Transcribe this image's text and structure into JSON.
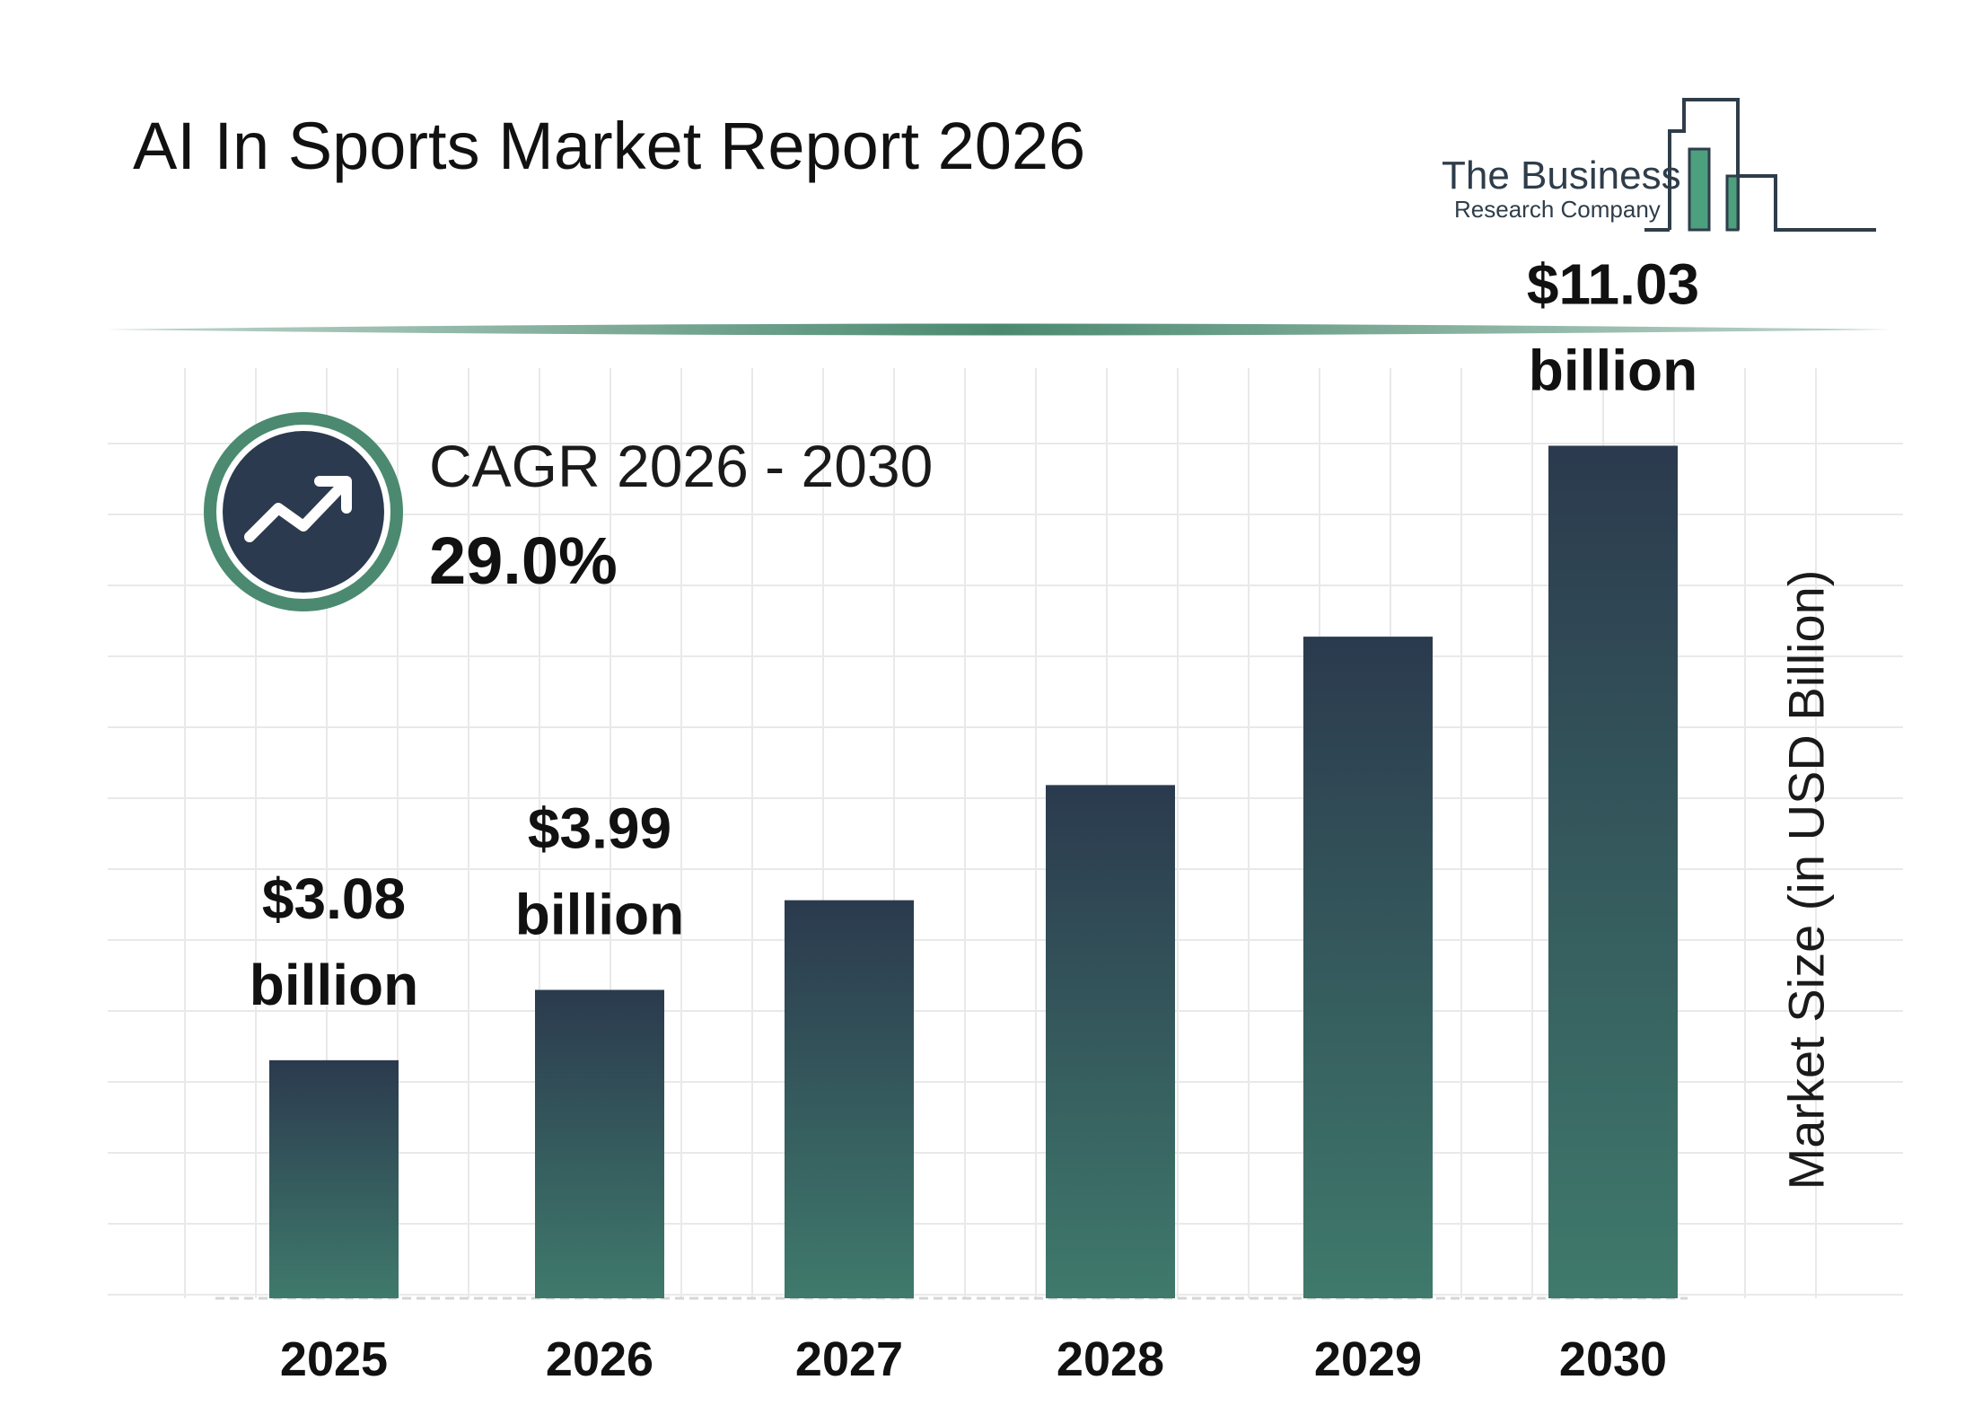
{
  "header": {
    "title": "AI In Sports Market Report 2026",
    "logo_line1": "The Business",
    "logo_line2": "Research Company"
  },
  "cagr": {
    "label": "CAGR 2026 - 2030",
    "value": "29.0%",
    "icon": "trending-up-icon"
  },
  "colors": {
    "bar_top": "#2b3a4e",
    "bar_bottom": "#3f7a6c",
    "accent_green": "#4b8a70",
    "dark_navy": "#2b3a4e",
    "grid": "#e9e9e9"
  },
  "chart_data": {
    "type": "bar",
    "categories": [
      "2025",
      "2026",
      "2027",
      "2028",
      "2029",
      "2030"
    ],
    "values": [
      3.08,
      3.99,
      5.15,
      6.64,
      8.56,
      11.03
    ],
    "ylabel": "Market Size (in USD Billion)",
    "ylim": [
      0,
      11.5
    ],
    "data_labels": [
      {
        "index": 0,
        "value_text": "$3.08",
        "unit_text": "billion"
      },
      {
        "index": 1,
        "value_text": "$3.99",
        "unit_text": "billion"
      },
      {
        "index": 5,
        "value_text": "$11.03",
        "unit_text": "billion"
      }
    ],
    "grid": true
  }
}
